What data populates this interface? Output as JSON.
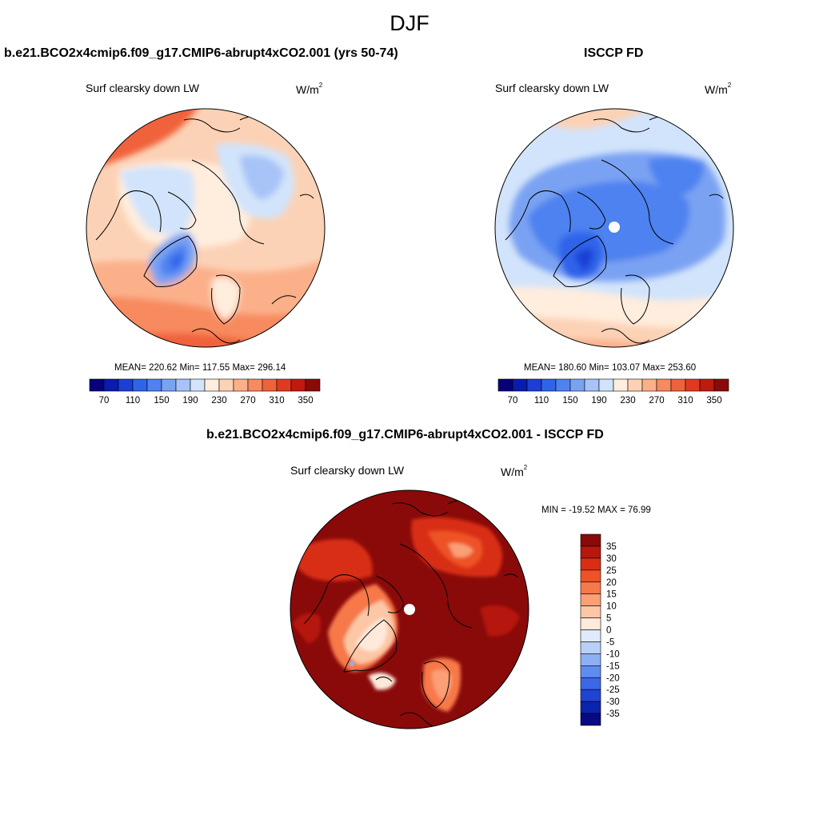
{
  "season": "DJF",
  "left_panel": {
    "title": "b.e21.BCO2x4cmip6.f09_g17.CMIP6-abrupt4xCO2.001 (yrs 50-74)",
    "variable": "Surf clearsky down LW",
    "units_base": "W/m",
    "units_exp": "2",
    "stats": "MEAN= 220.62  Min= 117.55  Max= 296.14"
  },
  "right_panel": {
    "title": "ISCCP FD",
    "variable": "Surf clearsky down LW",
    "units_base": "W/m",
    "units_exp": "2",
    "stats": "MEAN= 180.60  Min= 103.07  Max= 253.60"
  },
  "diff_panel": {
    "title": "b.e21.BCO2x4cmip6.f09_g17.CMIP6-abrupt4xCO2.001 - ISCCP FD",
    "variable": "Surf clearsky down LW",
    "units": "W/m²",
    "units_base": "W/m",
    "units_exp": "2",
    "minmax": "MIN = -19.52 MAX =  76.99"
  },
  "chart_data": [
    {
      "type": "heatmap",
      "projection": "north polar stereographic",
      "title": "b.e21.BCO2x4cmip6.f09_g17.CMIP6-abrupt4xCO2.001 (yrs 50-74)",
      "variable": "Surf clearsky down LW",
      "units": "W/m2",
      "mean": 220.62,
      "min": 117.55,
      "max": 296.14,
      "colorbar": {
        "orientation": "horizontal",
        "levels": [
          70,
          90,
          110,
          130,
          150,
          170,
          190,
          210,
          230,
          250,
          270,
          290,
          310,
          330,
          350
        ],
        "tick_labels": [
          "70",
          "110",
          "150",
          "190",
          "230",
          "270",
          "310",
          "350"
        ],
        "colors": [
          "#08007a",
          "#0a1bb0",
          "#1b3fd6",
          "#2f63ea",
          "#4d82f0",
          "#7aa2f3",
          "#a7c3f7",
          "#d2e4fb",
          "#ffeddd",
          "#fcd2b6",
          "#fbb08a",
          "#f88a5e",
          "#f0623a",
          "#e03a1e",
          "#c01a0e",
          "#8a0a0a"
        ]
      }
    },
    {
      "type": "heatmap",
      "projection": "north polar stereographic",
      "title": "ISCCP FD",
      "variable": "Surf clearsky down LW",
      "units": "W/m2",
      "mean": 180.6,
      "min": 103.07,
      "max": 253.6,
      "colorbar": {
        "orientation": "horizontal",
        "levels": [
          70,
          90,
          110,
          130,
          150,
          170,
          190,
          210,
          230,
          250,
          270,
          290,
          310,
          330,
          350
        ],
        "tick_labels": [
          "70",
          "110",
          "150",
          "190",
          "230",
          "270",
          "310",
          "350"
        ],
        "colors": [
          "#08007a",
          "#0a1bb0",
          "#1b3fd6",
          "#2f63ea",
          "#4d82f0",
          "#7aa2f3",
          "#a7c3f7",
          "#d2e4fb",
          "#ffeddd",
          "#fcd2b6",
          "#fbb08a",
          "#f88a5e",
          "#f0623a",
          "#e03a1e",
          "#c01a0e",
          "#8a0a0a"
        ]
      }
    },
    {
      "type": "heatmap",
      "projection": "north polar stereographic",
      "title": "b.e21.BCO2x4cmip6.f09_g17.CMIP6-abrupt4xCO2.001 - ISCCP FD",
      "variable": "Surf clearsky down LW",
      "units": "W/m2",
      "min": -19.52,
      "max": 76.99,
      "colorbar": {
        "orientation": "vertical",
        "levels": [
          -35,
          -30,
          -25,
          -20,
          -15,
          -10,
          -5,
          0,
          5,
          10,
          15,
          20,
          25,
          30,
          35
        ],
        "tick_labels": [
          "35",
          "30",
          "25",
          "20",
          "15",
          "10",
          "5",
          "0",
          "-5",
          "-10",
          "-15",
          "-20",
          "-25",
          "-30",
          "-35"
        ],
        "colors_top_to_bottom": [
          "#8a0a0a",
          "#b5180c",
          "#d92e14",
          "#ee5228",
          "#f7784a",
          "#fb9f76",
          "#fdc7a6",
          "#ffe9da",
          "#dfeafb",
          "#b8cff8",
          "#8db0f5",
          "#5f8cef",
          "#3b68e6",
          "#1f44d2",
          "#0c23ad",
          "#070a84"
        ]
      }
    }
  ]
}
